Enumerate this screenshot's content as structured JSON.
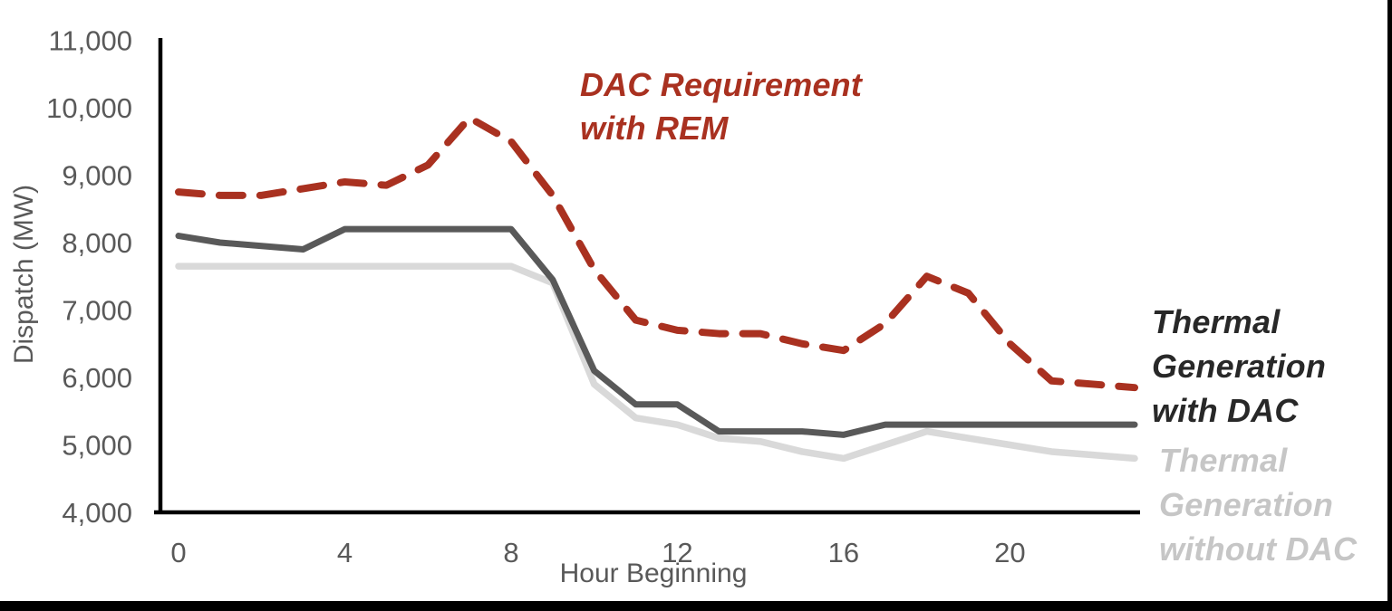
{
  "page": {
    "background": "#FFFFFF",
    "border_color": "#000000"
  },
  "annotations": {
    "dac_requirement": "DAC Requirement\nwith REM",
    "thermal_with_dac": "Thermal\nGeneration\nwith DAC",
    "thermal_without_dac": "Thermal\nGeneration\nwithout DAC"
  },
  "chart_data": {
    "type": "line",
    "title": "",
    "xlabel": "Hour Beginning",
    "ylabel": "Dispatch (MW)",
    "x": [
      0,
      1,
      2,
      3,
      4,
      5,
      6,
      7,
      8,
      9,
      10,
      11,
      12,
      13,
      14,
      15,
      16,
      17,
      18,
      19,
      20,
      21,
      22,
      23
    ],
    "xlim": [
      0,
      23
    ],
    "ylim": [
      4000,
      11000
    ],
    "grid": false,
    "legend_position": "inline-annotations",
    "axis_color": "#000000",
    "tick_label_color": "#595959",
    "xticks": [
      0,
      4,
      8,
      12,
      16,
      20
    ],
    "yticks": [
      {
        "value": 4000,
        "label": "4,000"
      },
      {
        "value": 5000,
        "label": "5,000"
      },
      {
        "value": 6000,
        "label": "6,000"
      },
      {
        "value": 7000,
        "label": "7,000"
      },
      {
        "value": 8000,
        "label": "8,000"
      },
      {
        "value": 9000,
        "label": "9,000"
      },
      {
        "value": 10000,
        "label": "10,000"
      },
      {
        "value": 11000,
        "label": "11,000"
      }
    ],
    "series": [
      {
        "name": "DAC Requirement with REM",
        "color": "#A93120",
        "line_style": "dashed",
        "stroke_width": 8,
        "values": [
          8750,
          8700,
          8700,
          8800,
          8900,
          8850,
          9150,
          9850,
          9500,
          8700,
          7600,
          6850,
          6700,
          6650,
          6650,
          6500,
          6400,
          6800,
          7500,
          7250,
          6500,
          5950,
          5900,
          5850
        ]
      },
      {
        "name": "Thermal Generation with DAC",
        "color": "#595959",
        "line_style": "solid",
        "stroke_width": 7,
        "values": [
          8100,
          8000,
          7950,
          7900,
          8200,
          8200,
          8200,
          8200,
          8200,
          7450,
          6100,
          5600,
          5600,
          5200,
          5200,
          5200,
          5150,
          5300,
          5300,
          5300,
          5300,
          5300,
          5300,
          5300
        ]
      },
      {
        "name": "Thermal Generation without DAC",
        "color": "#D9D9D9",
        "line_style": "solid",
        "stroke_width": 7.5,
        "values": [
          7650,
          7650,
          7650,
          7650,
          7650,
          7650,
          7650,
          7650,
          7650,
          7400,
          5900,
          5400,
          5300,
          5100,
          5050,
          4900,
          4800,
          5000,
          5200,
          5100,
          5000,
          4900,
          4850,
          4800
        ]
      }
    ]
  }
}
